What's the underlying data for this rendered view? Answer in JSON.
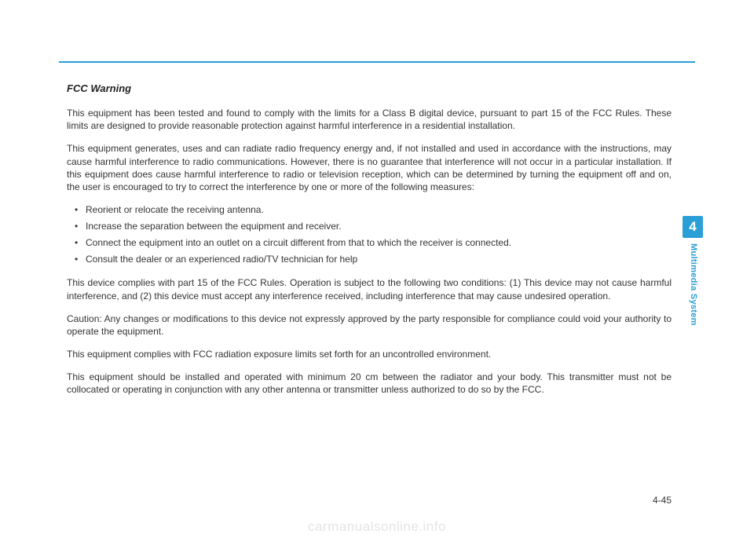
{
  "page": {
    "heading": "FCC Warning",
    "paragraphs_top": [
      "This equipment has been tested and found to comply with the limits for a Class B digital device, pursuant to part 15 of the FCC Rules. These limits are designed to provide reasonable protection against harmful interference in a residential installation.",
      "This equipment generates, uses and can radiate radio frequency energy and, if not installed and used in accordance with the instructions, may cause harmful interference to radio communications. However, there is no guarantee that interference will not occur in a particular installation. If this equipment does cause harmful interference to radio or television reception, which can be determined by turning the equipment off and on, the user is encouraged to try to correct the interference by one or more of the following measures:"
    ],
    "bullets": [
      "Reorient or relocate the receiving antenna.",
      "Increase the separation between the equipment and receiver.",
      "Connect the equipment into an outlet on a circuit different from that to which the receiver is connected.",
      "Consult the dealer or an experienced radio/TV technician for help"
    ],
    "paragraphs_bottom": [
      "This device complies with part 15 of the FCC Rules. Operation is subject to the following two conditions: (1) This device may not cause harmful interference, and (2) this device must accept any interference received, including interference that may cause undesired operation.",
      "Caution: Any changes or modifications to this device not expressly approved by the party responsible for compliance could void your authority to operate the equipment.",
      "This equipment complies with FCC radiation exposure limits set forth for an uncontrolled environment.",
      "This equipment should be installed and operated with minimum 20 cm between the radiator and your body. This transmitter must not be collocated or operating in conjunction with any other antenna or transmitter unless authorized to do so by the FCC."
    ],
    "side_tab_number": "4",
    "side_label": "Multimedia System",
    "page_number": "4-45",
    "watermark": "carmanualsonline.info",
    "colors": {
      "accent": "#2a9fd6",
      "text": "#333333",
      "watermark": "#e4e4e4",
      "background": "#ffffff"
    }
  }
}
